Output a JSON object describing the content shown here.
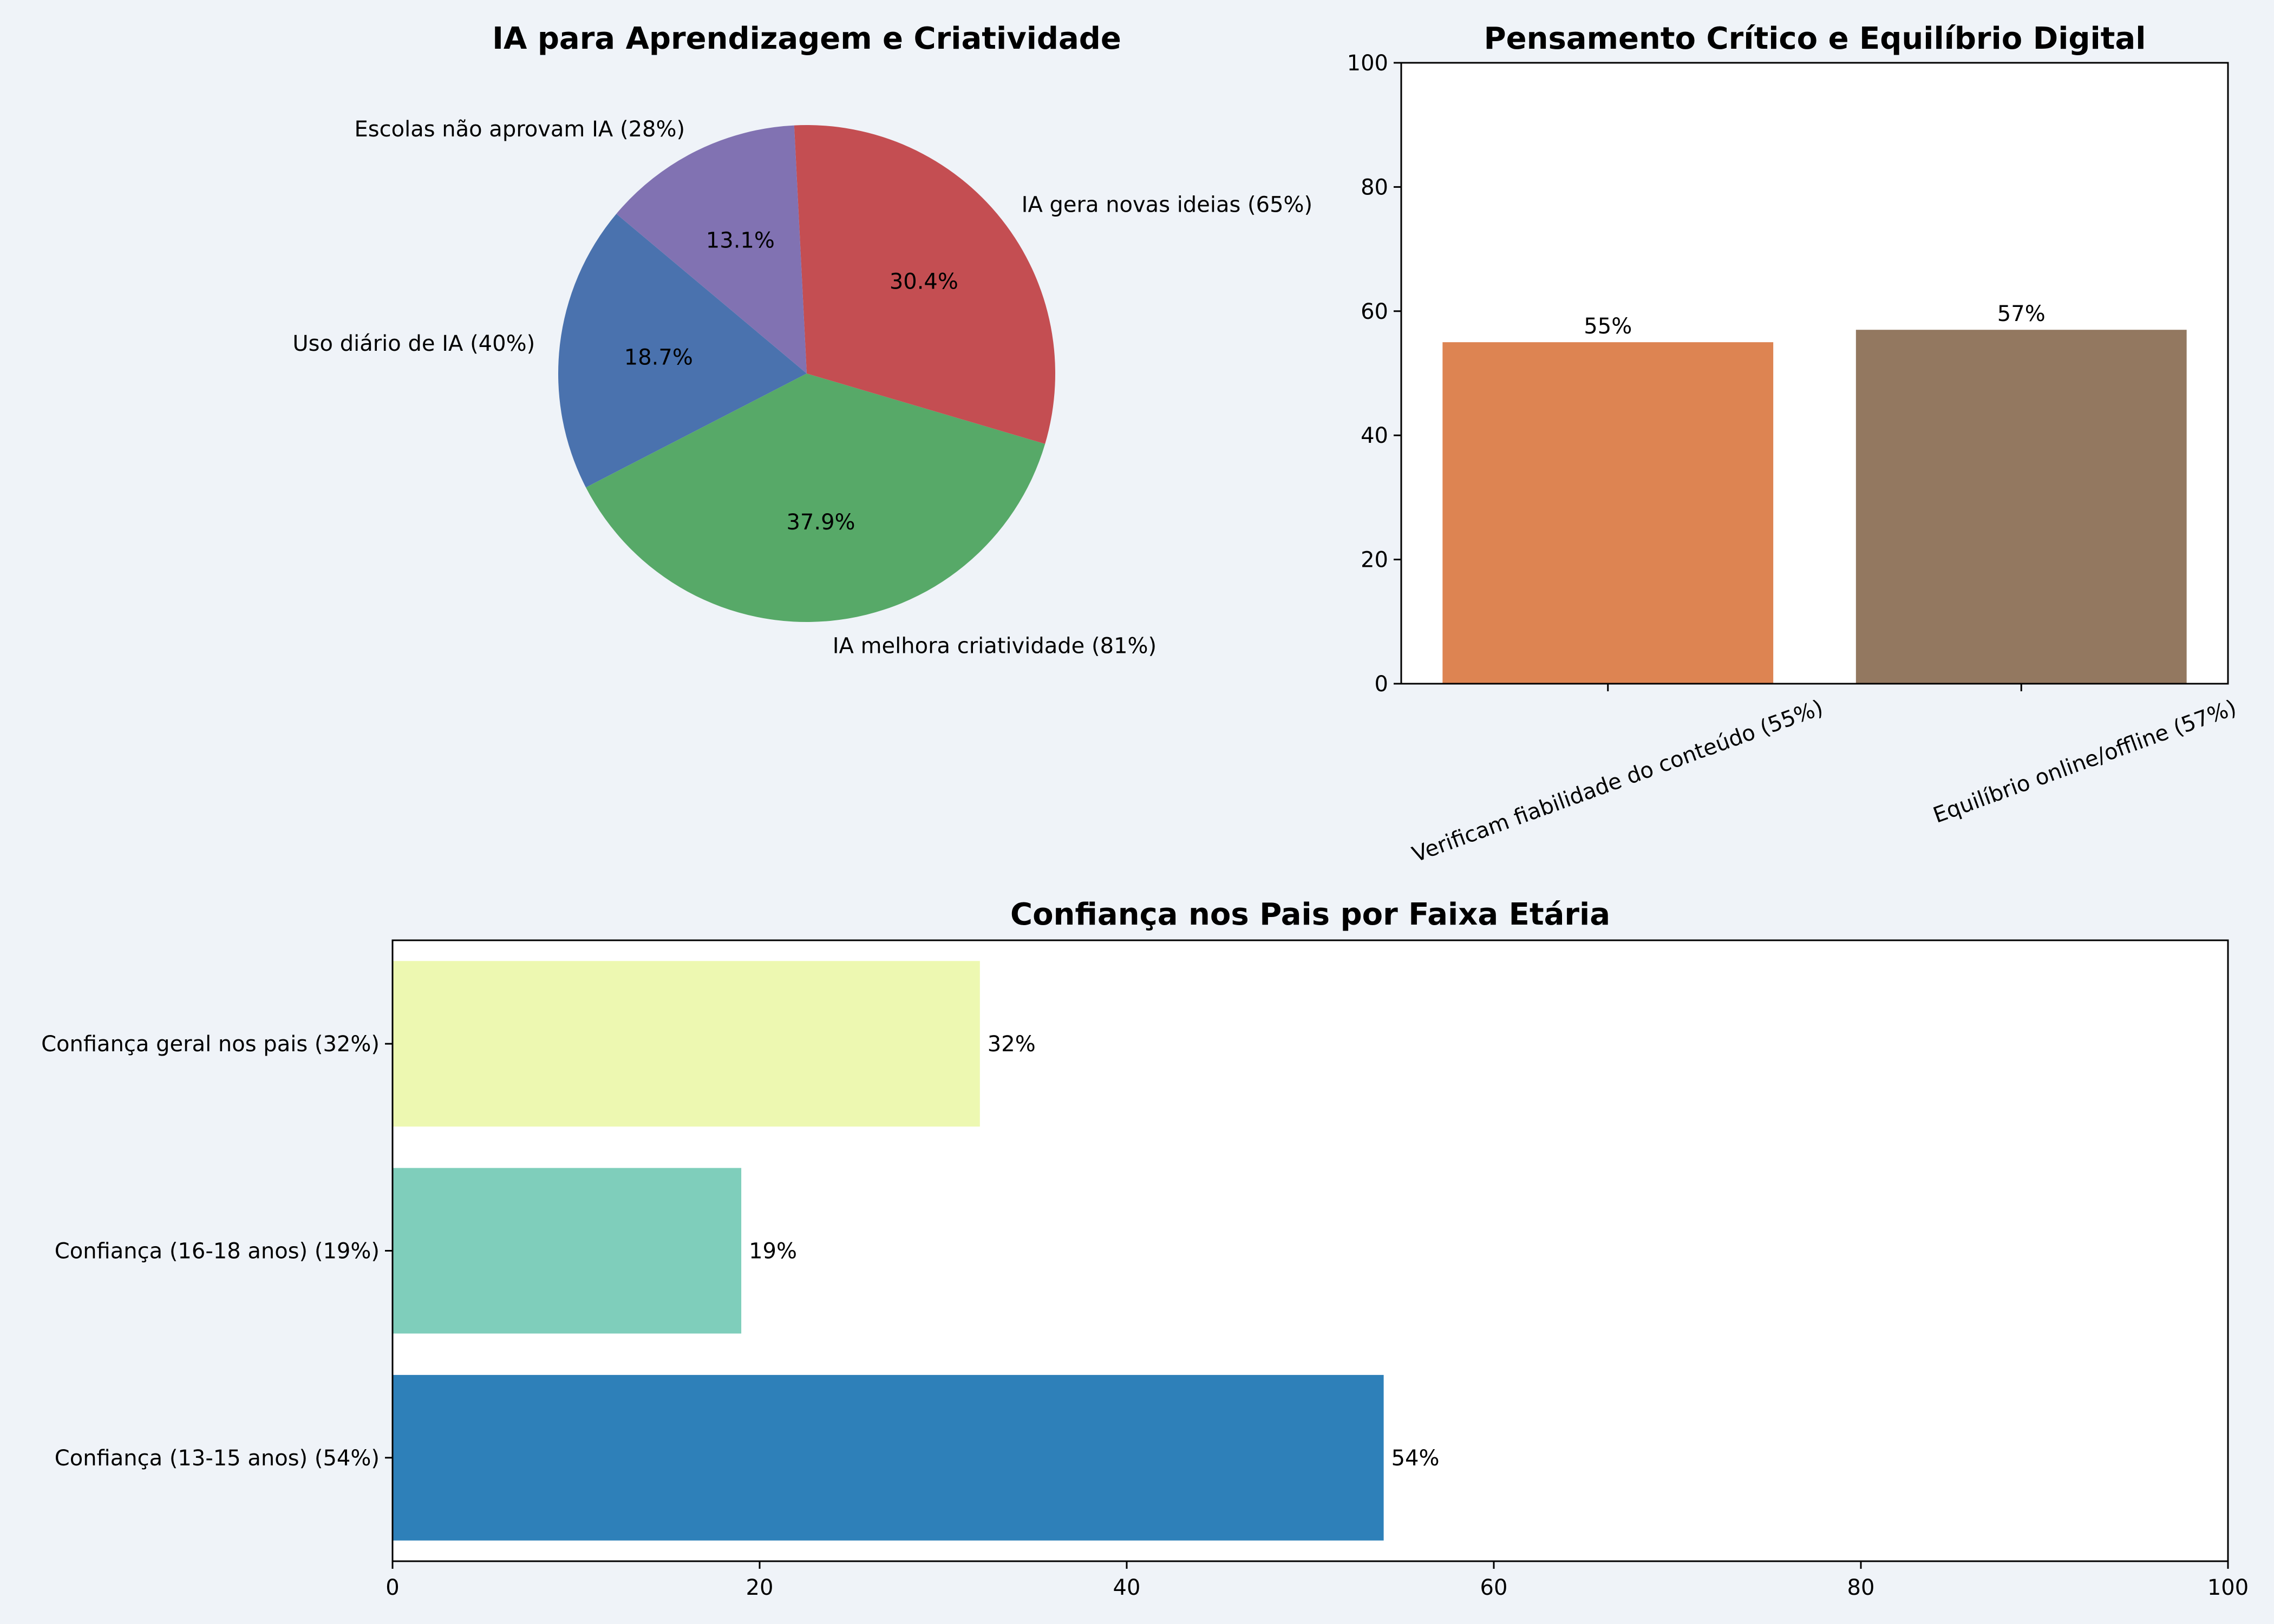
{
  "colors": {
    "background": "#eff3f8",
    "pie": [
      "#4a72ae",
      "#57a968",
      "#c44e52",
      "#8172b2"
    ],
    "bars_top": [
      "#dd8452",
      "#937860"
    ],
    "bars_bottom": [
      "#2e80b9",
      "#7fcebb",
      "#edf8b1"
    ]
  },
  "chart_data": [
    {
      "type": "pie",
      "title": "IA para Aprendizagem e Criatividade",
      "labels": [
        "Uso diário de IA (40%)",
        "IA melhora criatividade (81%)",
        "IA gera novas ideias (65%)",
        "Escolas não aprovam IA (28%)"
      ],
      "values": [
        40,
        81,
        65,
        28
      ],
      "percent_labels": [
        "18.7%",
        "37.9%",
        "30.4%",
        "13.1%"
      ]
    },
    {
      "type": "bar",
      "title": "Pensamento Crítico e Equilíbrio Digital",
      "categories": [
        "Verificam fiabilidade do conteúdo (55%)",
        "Equilíbrio online/offline (57%)"
      ],
      "values": [
        55,
        57
      ],
      "value_labels": [
        "55%",
        "57%"
      ],
      "ylim": [
        0,
        100
      ],
      "yticks": [
        "0",
        "20",
        "40",
        "60",
        "80",
        "100"
      ]
    },
    {
      "type": "bar",
      "orientation": "horizontal",
      "title": "Confiança nos Pais por Faixa Etária",
      "categories": [
        "Confiança (13-15 anos) (54%)",
        "Confiança (16-18 anos) (19%)",
        "Confiança geral nos pais (32%)"
      ],
      "values": [
        54,
        19,
        32
      ],
      "value_labels": [
        "54%",
        "19%",
        "32%"
      ],
      "xlim": [
        0,
        100
      ],
      "xticks": [
        "0",
        "20",
        "40",
        "60",
        "80",
        "100"
      ]
    }
  ]
}
